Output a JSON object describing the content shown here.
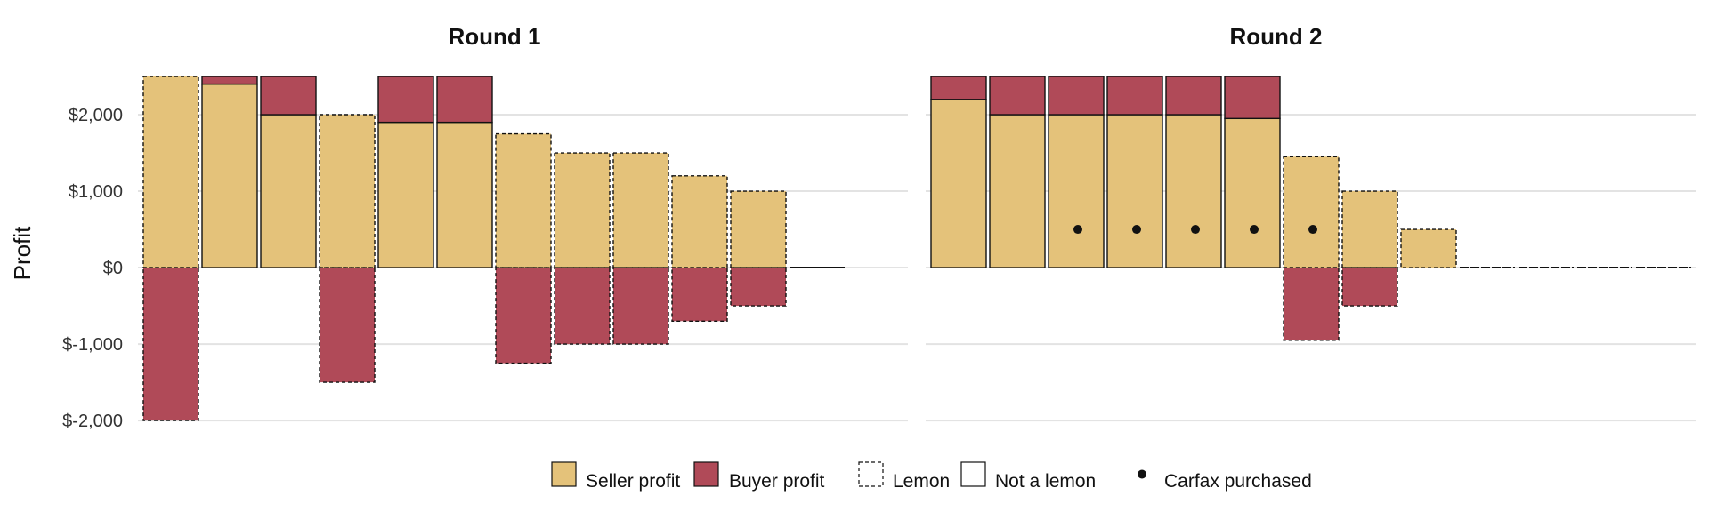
{
  "colors": {
    "seller": "#e4c27a",
    "buyer": "#b04a58",
    "gridline": "#e3e3e3",
    "outline": "#111111",
    "background": "#ffffff"
  },
  "chart_data": {
    "type": "bar",
    "ylabel": "Profit",
    "ylim": [
      -2150,
      2500
    ],
    "y_ticks": [
      {
        "value": -2000,
        "label": "$-2,000"
      },
      {
        "value": -1000,
        "label": "$-1,000"
      },
      {
        "value": 0,
        "label": "$0"
      },
      {
        "value": 1000,
        "label": "$1,000"
      },
      {
        "value": 2000,
        "label": "$2,000"
      }
    ],
    "grid": "horizontal",
    "legend_position": "bottom",
    "legend": {
      "seller": "Seller profit",
      "buyer": "Buyer profit",
      "lemon": "Lemon",
      "not_lemon": "Not a lemon",
      "carfax": "Carfax purchased"
    },
    "panels": [
      {
        "title": "Round 1",
        "bars": [
          {
            "seller": 2500,
            "buyer": -2000,
            "lemon": true,
            "carfax": false
          },
          {
            "seller": 2400,
            "buyer": 100,
            "lemon": false,
            "carfax": false
          },
          {
            "seller": 2000,
            "buyer": 500,
            "lemon": false,
            "carfax": false
          },
          {
            "seller": 2000,
            "buyer": -1500,
            "lemon": true,
            "carfax": false
          },
          {
            "seller": 1900,
            "buyer": 600,
            "lemon": false,
            "carfax": false
          },
          {
            "seller": 1900,
            "buyer": 600,
            "lemon": false,
            "carfax": false
          },
          {
            "seller": 1750,
            "buyer": -1250,
            "lemon": true,
            "carfax": false
          },
          {
            "seller": 1500,
            "buyer": -1000,
            "lemon": true,
            "carfax": false
          },
          {
            "seller": 1500,
            "buyer": -1000,
            "lemon": true,
            "carfax": false
          },
          {
            "seller": 1200,
            "buyer": -700,
            "lemon": true,
            "carfax": false
          },
          {
            "seller": 1000,
            "buyer": -500,
            "lemon": true,
            "carfax": false
          },
          {
            "seller": 0,
            "buyer": 0,
            "lemon": false,
            "carfax": false
          }
        ]
      },
      {
        "title": "Round 2",
        "bars": [
          {
            "seller": 2200,
            "buyer": 300,
            "lemon": false,
            "carfax": false
          },
          {
            "seller": 2000,
            "buyer": 500,
            "lemon": false,
            "carfax": false
          },
          {
            "seller": 2000,
            "buyer": 500,
            "lemon": false,
            "carfax": true
          },
          {
            "seller": 2000,
            "buyer": 500,
            "lemon": false,
            "carfax": true
          },
          {
            "seller": 2000,
            "buyer": 500,
            "lemon": false,
            "carfax": true
          },
          {
            "seller": 1950,
            "buyer": 550,
            "lemon": false,
            "carfax": true
          },
          {
            "seller": 1450,
            "buyer": -950,
            "lemon": true,
            "carfax": true
          },
          {
            "seller": 1000,
            "buyer": -500,
            "lemon": true,
            "carfax": false
          },
          {
            "seller": 500,
            "buyer": 0,
            "lemon": true,
            "carfax": false
          },
          {
            "seller": 0,
            "buyer": 0,
            "lemon": true,
            "carfax": false
          },
          {
            "seller": 0,
            "buyer": 0,
            "lemon": true,
            "carfax": false
          },
          {
            "seller": 0,
            "buyer": 0,
            "lemon": true,
            "carfax": false
          },
          {
            "seller": 0,
            "buyer": 0,
            "lemon": true,
            "carfax": false
          }
        ]
      }
    ]
  }
}
